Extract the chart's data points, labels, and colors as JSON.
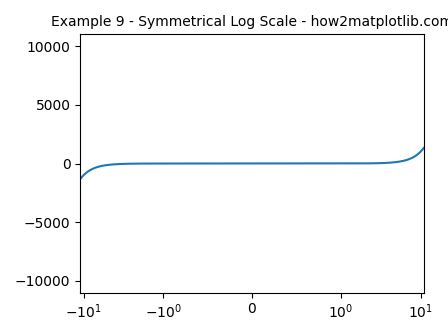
{
  "title": "Example 9 - Symmetrical Log Scale - how2matplotlib.com",
  "line_color": "#1f77b4",
  "x_min": -11,
  "x_max": 11,
  "num_points": 2000,
  "linthresh": 1,
  "xlim": [
    -11,
    11
  ],
  "ylim": [
    -11000,
    11000
  ],
  "title_fontsize": 10,
  "figsize": [
    4.48,
    3.36
  ],
  "dpi": 100
}
